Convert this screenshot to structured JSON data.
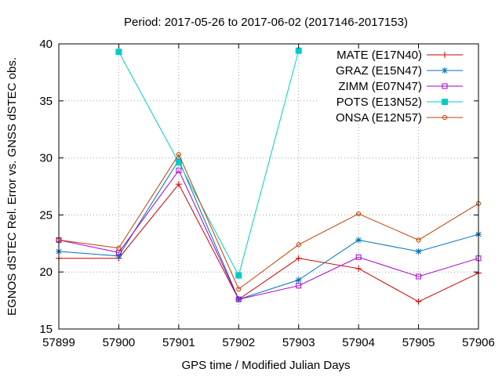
{
  "chart_data": {
    "type": "line",
    "title": "Period: 2017-05-26 to 2017-06-02 (2017146-2017153)",
    "xlabel": "GPS time / Modified Julian Days",
    "ylabel": "EGNOS dSTEC Rel. Error vs. GNSS dSTEC obs.",
    "xlim": [
      57899,
      57906
    ],
    "ylim": [
      15,
      40
    ],
    "x_ticks": [
      57899,
      57900,
      57901,
      57902,
      57903,
      57904,
      57905,
      57906
    ],
    "y_ticks": [
      15,
      20,
      25,
      30,
      35,
      40
    ],
    "grid": true,
    "legend_position": "top-right",
    "series": [
      {
        "name": "MATE (E17N40)",
        "color": "#cc0000",
        "marker": "plus",
        "points": [
          [
            57899,
            21.2
          ],
          [
            57900,
            21.2
          ],
          [
            57901,
            27.7
          ],
          [
            57902,
            17.6
          ],
          [
            57903,
            21.2
          ],
          [
            57904,
            20.3
          ],
          [
            57905,
            17.4
          ],
          [
            57906,
            19.9
          ]
        ]
      },
      {
        "name": "GRAZ (E15N47)",
        "color": "#0072bd",
        "marker": "star",
        "points": [
          [
            57899,
            21.8
          ],
          [
            57900,
            21.4
          ],
          [
            57901,
            29.8
          ],
          [
            57902,
            17.6
          ],
          [
            57903,
            19.3
          ],
          [
            57904,
            22.8
          ],
          [
            57905,
            21.8
          ],
          [
            57906,
            23.3
          ]
        ]
      },
      {
        "name": "ZIMM (E07N47)",
        "color": "#a400cc",
        "marker": "square-open",
        "points": [
          [
            57899,
            22.8
          ],
          [
            57900,
            21.7
          ],
          [
            57901,
            28.9
          ],
          [
            57902,
            17.6
          ],
          [
            57903,
            18.8
          ],
          [
            57904,
            21.3
          ],
          [
            57905,
            19.6
          ],
          [
            57906,
            21.2
          ]
        ]
      },
      {
        "name": "POTS (E13N52)",
        "color": "#00cccc",
        "marker": "square-filled",
        "points": [
          [
            57900,
            39.3
          ],
          [
            57901,
            29.6
          ],
          [
            57902,
            19.7
          ],
          [
            57903,
            39.4
          ]
        ]
      },
      {
        "name": "ONSA (E12N57)",
        "color": "#c04000",
        "marker": "circle-open",
        "points": [
          [
            57899,
            22.8
          ],
          [
            57900,
            22.1
          ],
          [
            57901,
            30.3
          ],
          [
            57902,
            18.5
          ],
          [
            57903,
            22.4
          ],
          [
            57904,
            25.1
          ],
          [
            57905,
            22.8
          ],
          [
            57906,
            26.0
          ]
        ]
      }
    ]
  }
}
